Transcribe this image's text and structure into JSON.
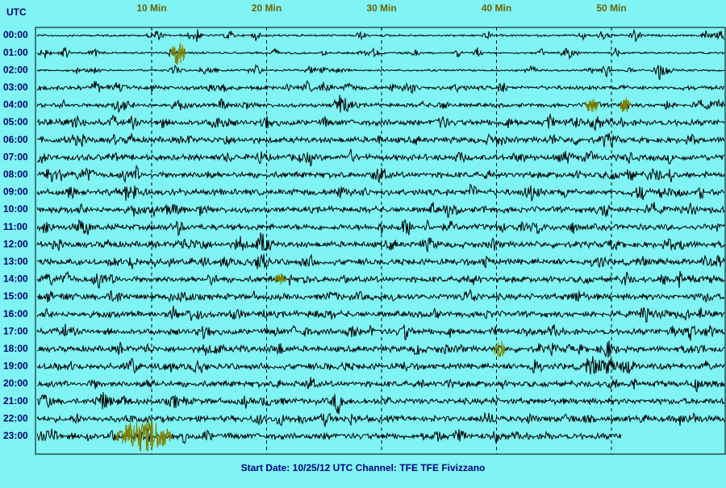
{
  "chart_data": {
    "type": "helicorder",
    "corner_label": "UTC",
    "xlim": [
      0,
      60
    ],
    "xticks": [
      {
        "value": 10,
        "label": "10 Min"
      },
      {
        "value": 20,
        "label": "20 Min"
      },
      {
        "value": 30,
        "label": "30 Min"
      },
      {
        "value": 40,
        "label": "40 Min"
      },
      {
        "value": 50,
        "label": "50 Min"
      }
    ],
    "categories": [
      "00:00",
      "01:00",
      "02:00",
      "03:00",
      "04:00",
      "05:00",
      "06:00",
      "07:00",
      "08:00",
      "09:00",
      "10:00",
      "11:00",
      "12:00",
      "13:00",
      "14:00",
      "15:00",
      "16:00",
      "17:00",
      "18:00",
      "19:00",
      "20:00",
      "21:00",
      "22:00",
      "23:00"
    ],
    "footer": "Start Date: 10/25/12 UTC Channel: TFE  TFE  Fivizzano",
    "grid": true,
    "trace_color": "#000000",
    "event_color": "#808000"
  }
}
